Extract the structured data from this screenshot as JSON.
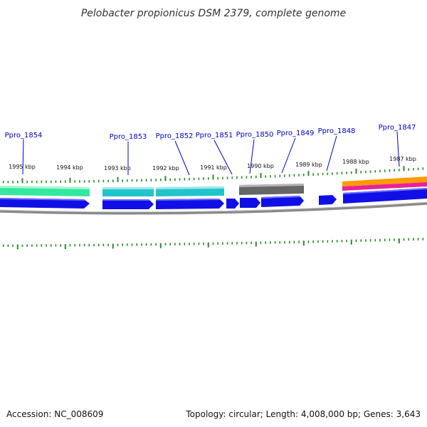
{
  "title": "Pelobacter propionicus DSM 2379, complete genome",
  "accession": "Accession: NC_008609",
  "summary": "Topology: circular; Length: 4,008,000 bp; Genes: 3,643",
  "tick_labels": [
    "1995 kbp",
    "1994 kbp",
    "1993 kbp",
    "1992 kbp",
    "1991 kbp",
    "1990 kbp",
    "1989 kbp",
    "1988 kbp",
    "1987 kbp"
  ],
  "genes": [
    {
      "name": "Ppro_1854"
    },
    {
      "name": "Ppro_1853"
    },
    {
      "name": "Ppro_1852"
    },
    {
      "name": "Ppro_1851"
    },
    {
      "name": "Ppro_1850"
    },
    {
      "name": "Ppro_1849"
    },
    {
      "name": "Ppro_1848"
    },
    {
      "name": "Ppro_1847"
    }
  ],
  "colors": {
    "gene_label": "#0000c8",
    "tick": "#2a8a2a",
    "cds": "#1010e6",
    "backbone": "#808080",
    "track_green": "#2ee6a0",
    "track_cyan": "#22c4cc",
    "track_gray": "#6a6a6a",
    "track_orange": "#ff9a00",
    "track_magenta": "#e8229a"
  }
}
